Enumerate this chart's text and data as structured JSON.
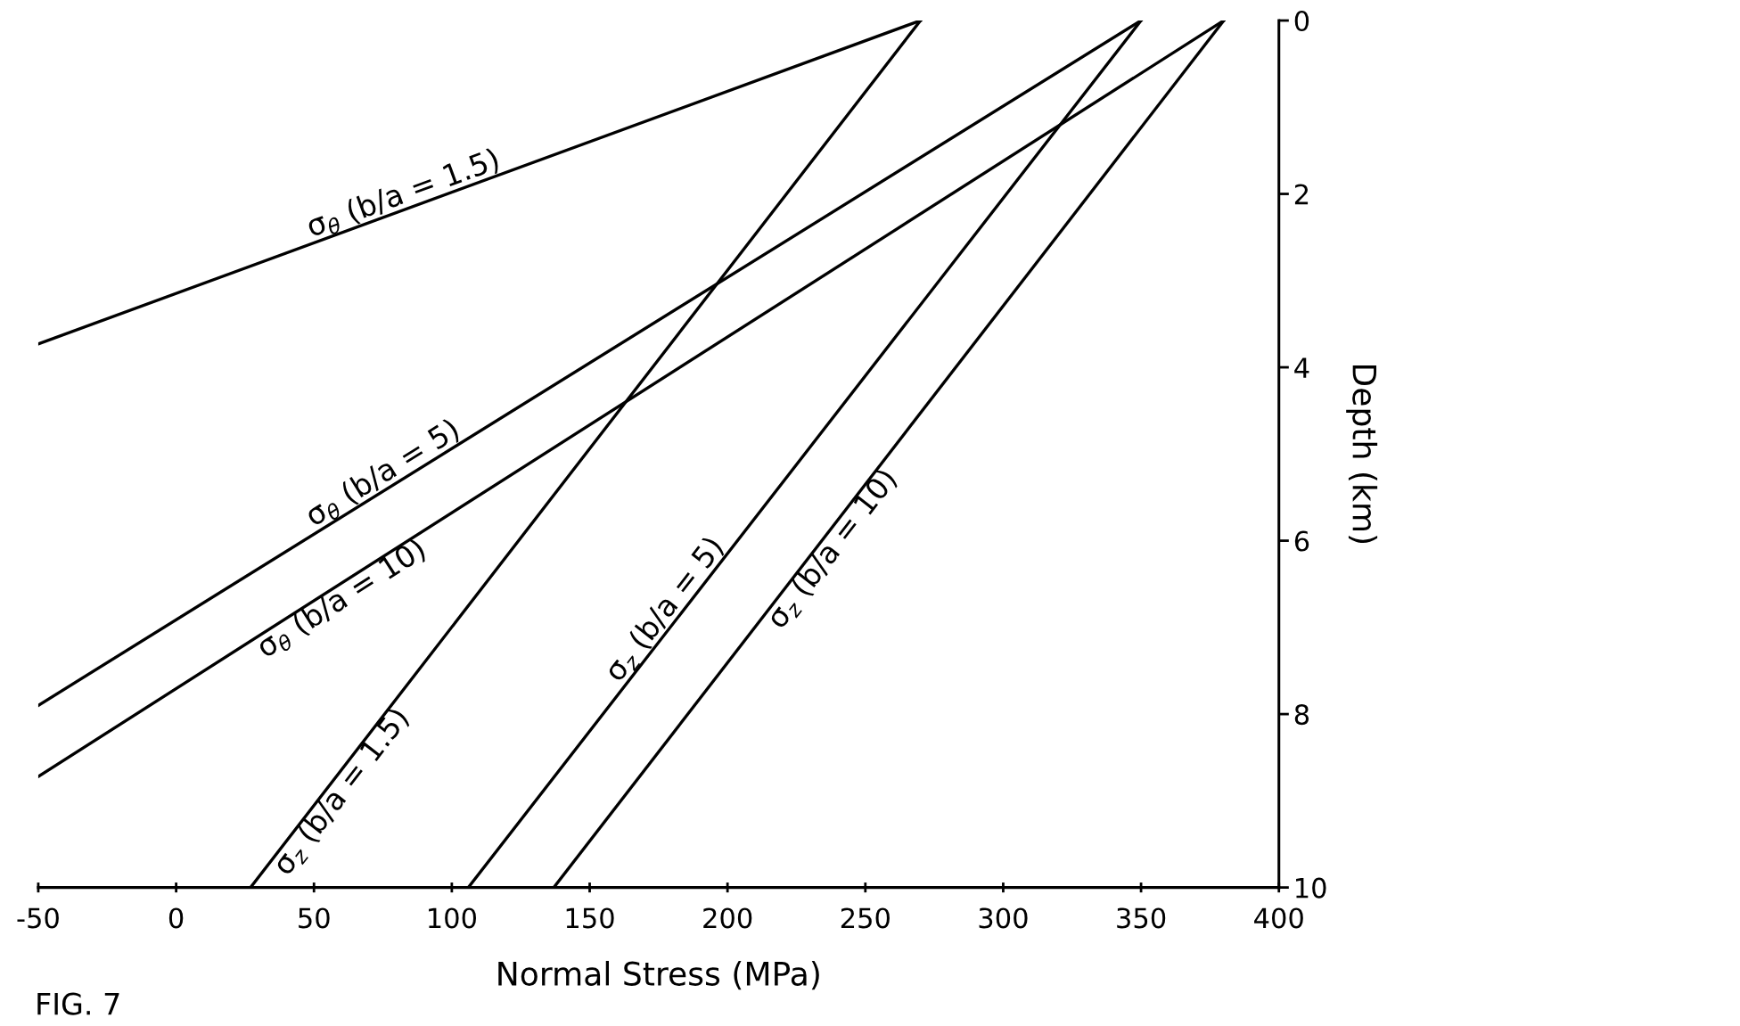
{
  "chart_data": {
    "type": "line",
    "xlabel": "Normal Stress (MPa)",
    "ylabel": "Depth (km)",
    "xlim": [
      -50,
      400
    ],
    "xticks": [
      -50,
      0,
      50,
      100,
      150,
      200,
      250,
      300,
      350,
      400
    ],
    "ylim": [
      10,
      0
    ],
    "yticks": [
      0,
      2,
      4,
      6,
      8,
      10
    ],
    "grid": false,
    "legend": false,
    "marker": "none",
    "line_style": "solid",
    "series": [
      {
        "name": "σ$_{θ}$ (b/a = 1.5)",
        "color": "#000000",
        "x": [
          -50,
          270
        ],
        "values": [
          3.73,
          0
        ]
      },
      {
        "name": "σ$_{θ}$ (b/a = 5)",
        "color": "#000000",
        "x": [
          -50,
          350
        ],
        "values": [
          7.9,
          0
        ]
      },
      {
        "name": "σ$_{θ}$ (b/a = 10)",
        "color": "#000000",
        "x": [
          -50,
          380
        ],
        "values": [
          8.72,
          0
        ]
      },
      {
        "name": "σ$_{z}$ (b/a = 1.5)",
        "color": "#000000",
        "x": [
          27,
          270
        ],
        "values": [
          10,
          0
        ]
      },
      {
        "name": "σ$_{z}$ (b/a = 5)",
        "color": "#000000",
        "x": [
          106,
          350
        ],
        "values": [
          10,
          0
        ]
      },
      {
        "name": "σ$_{z}$ (b/a = 10)",
        "color": "#000000",
        "x": [
          137,
          380
        ],
        "values": [
          10,
          0
        ]
      }
    ],
    "annotations": [
      "FIG. 7"
    ]
  }
}
